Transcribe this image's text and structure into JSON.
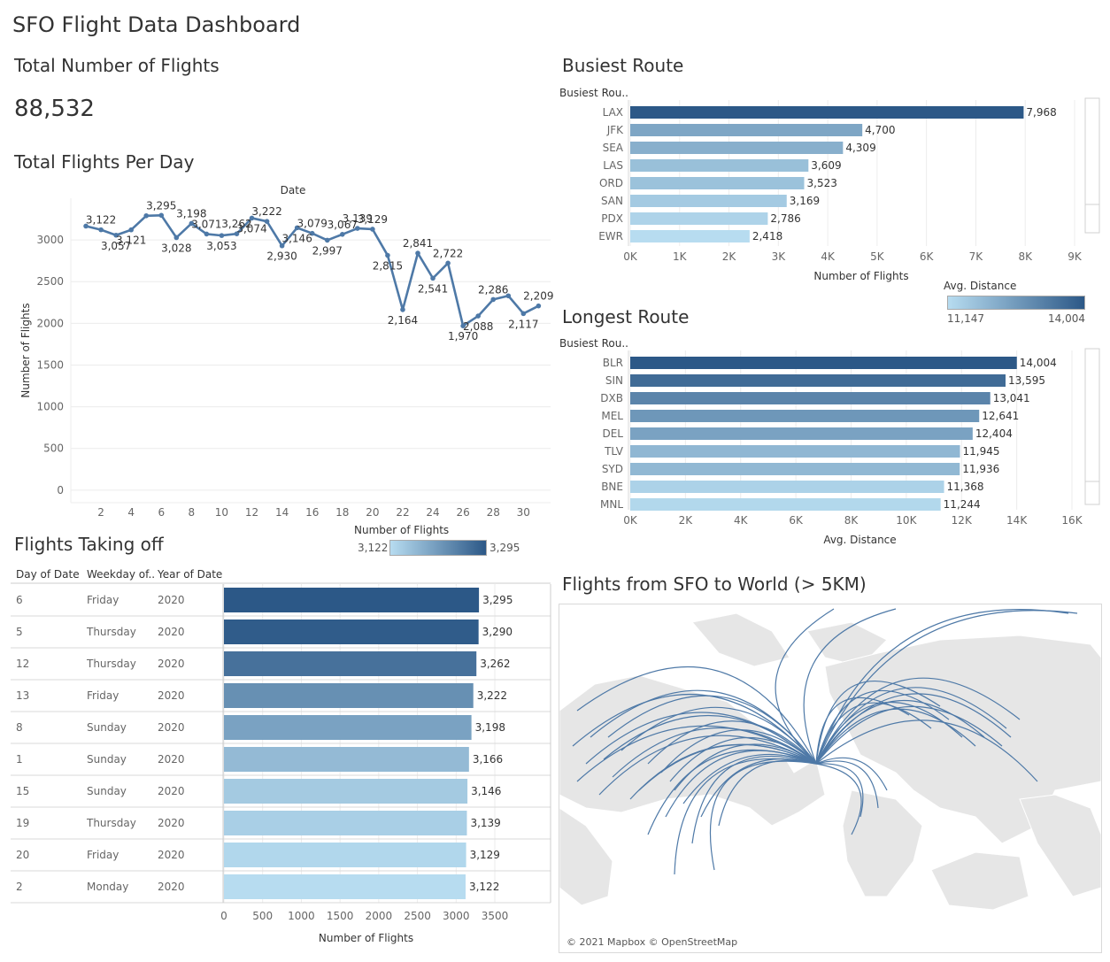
{
  "dashboard_title": "SFO Flight Data Dashboard",
  "kpi": {
    "title": "Total Number of Flights",
    "value": "88,532"
  },
  "colors": {
    "dark": "#2c5887",
    "light": "#b7dcf0",
    "line": "#4e79a7",
    "axis": "#666666"
  },
  "chart_data": [
    {
      "type": "line",
      "title": "Total Flights Per Day",
      "header": "Date",
      "xlabel": "Date",
      "ylabel": "Number of Flights",
      "x": [
        1,
        2,
        3,
        4,
        5,
        6,
        7,
        8,
        9,
        10,
        11,
        12,
        13,
        14,
        15,
        16,
        17,
        18,
        19,
        20,
        21,
        22,
        23,
        24,
        25,
        26,
        27,
        28,
        29,
        30,
        31
      ],
      "values": [
        3166,
        3122,
        3057,
        3121,
        3290,
        3295,
        3028,
        3198,
        3071,
        3053,
        3074,
        3262,
        3222,
        2930,
        3146,
        3079,
        2997,
        3067,
        3139,
        3129,
        2815,
        2164,
        2841,
        2541,
        2722,
        1970,
        2088,
        2286,
        2330,
        2117,
        2209
      ],
      "data_labels": [
        {
          "x": 2,
          "text": "3,122",
          "pos": "above"
        },
        {
          "x": 3,
          "text": "3,057",
          "pos": "below"
        },
        {
          "x": 4,
          "text": "3,121",
          "pos": "below"
        },
        {
          "x": 6,
          "text": "3,295",
          "pos": "above"
        },
        {
          "x": 7,
          "text": "3,028",
          "pos": "below"
        },
        {
          "x": 8,
          "text": "3,198",
          "pos": "above"
        },
        {
          "x": 9,
          "text": "3,071",
          "pos": "above"
        },
        {
          "x": 10,
          "text": "3,053",
          "pos": "below"
        },
        {
          "x": 11,
          "text": "3,262",
          "pos": "above"
        },
        {
          "x": 12,
          "text": "3,074",
          "pos": "below"
        },
        {
          "x": 13,
          "text": "3,222",
          "pos": "above"
        },
        {
          "x": 14,
          "text": "2,930",
          "pos": "below"
        },
        {
          "x": 15,
          "text": "3,146",
          "pos": "below"
        },
        {
          "x": 16,
          "text": "3,079",
          "pos": "above"
        },
        {
          "x": 17,
          "text": "2,997",
          "pos": "below"
        },
        {
          "x": 18,
          "text": "3,067",
          "pos": "above"
        },
        {
          "x": 19,
          "text": "3,139",
          "pos": "above"
        },
        {
          "x": 20,
          "text": "3,129",
          "pos": "above"
        },
        {
          "x": 21,
          "text": "2,815",
          "pos": "below"
        },
        {
          "x": 22,
          "text": "2,164",
          "pos": "below"
        },
        {
          "x": 23,
          "text": "2,841",
          "pos": "above"
        },
        {
          "x": 24,
          "text": "2,541",
          "pos": "below"
        },
        {
          "x": 25,
          "text": "2,722",
          "pos": "above"
        },
        {
          "x": 26,
          "text": "1,970",
          "pos": "below"
        },
        {
          "x": 27,
          "text": "2,088",
          "pos": "below"
        },
        {
          "x": 28,
          "text": "2,286",
          "pos": "above"
        },
        {
          "x": 30,
          "text": "2,117",
          "pos": "below"
        },
        {
          "x": 31,
          "text": "2,209",
          "pos": "above"
        }
      ],
      "xticks": [
        2,
        4,
        6,
        8,
        10,
        12,
        14,
        16,
        18,
        20,
        22,
        24,
        26,
        28,
        30
      ],
      "yticks": [
        0,
        500,
        1000,
        1500,
        2000,
        2500,
        3000
      ],
      "ylim": [
        -150,
        3500
      ]
    },
    {
      "type": "bar",
      "title": "Busiest Route",
      "header": "Busiest Rou..",
      "categories": [
        "LAX",
        "JFK",
        "SEA",
        "LAS",
        "ORD",
        "SAN",
        "PDX",
        "EWR"
      ],
      "values": [
        7968,
        4700,
        4309,
        3609,
        3523,
        3169,
        2786,
        2418
      ],
      "value_labels": [
        "7,968",
        "4,700",
        "4,309",
        "3,609",
        "3,523",
        "3,169",
        "2,786",
        "2,418"
      ],
      "xticks": [
        "0K",
        "1K",
        "2K",
        "3K",
        "4K",
        "5K",
        "6K",
        "7K",
        "8K",
        "9K"
      ],
      "xlim": [
        0,
        9000
      ],
      "xlabel": "Number of Flights",
      "legend": {
        "title": "Avg. Distance",
        "min": "11,147",
        "max": "14,004"
      }
    },
    {
      "type": "bar",
      "title": "Longest Route",
      "header": "Busiest Rou..",
      "categories": [
        "BLR",
        "SIN",
        "DXB",
        "MEL",
        "DEL",
        "TLV",
        "SYD",
        "BNE",
        "MNL"
      ],
      "values": [
        14004,
        13595,
        13041,
        12641,
        12404,
        11945,
        11936,
        11368,
        11244
      ],
      "value_labels": [
        "14,004",
        "13,595",
        "13,041",
        "12,641",
        "12,404",
        "11,945",
        "11,936",
        "11,368",
        "11,244"
      ],
      "xticks": [
        "0K",
        "2K",
        "4K",
        "6K",
        "8K",
        "10K",
        "12K",
        "14K",
        "16K"
      ],
      "xlim": [
        0,
        16000
      ],
      "xlabel": "Avg. Distance",
      "color_range": [
        11147,
        14004
      ]
    },
    {
      "type": "bar",
      "title": "Flights Taking off",
      "columns": [
        "Day of Date",
        "Weekday of..",
        "Year of Date"
      ],
      "rows": [
        {
          "day": "6",
          "weekday": "Friday",
          "year": "2020",
          "value": 3295,
          "label": "3,295"
        },
        {
          "day": "5",
          "weekday": "Thursday",
          "year": "2020",
          "value": 3290,
          "label": "3,290"
        },
        {
          "day": "12",
          "weekday": "Thursday",
          "year": "2020",
          "value": 3262,
          "label": "3,262"
        },
        {
          "day": "13",
          "weekday": "Friday",
          "year": "2020",
          "value": 3222,
          "label": "3,222"
        },
        {
          "day": "8",
          "weekday": "Sunday",
          "year": "2020",
          "value": 3198,
          "label": "3,198"
        },
        {
          "day": "1",
          "weekday": "Sunday",
          "year": "2020",
          "value": 3166,
          "label": "3,166"
        },
        {
          "day": "15",
          "weekday": "Sunday",
          "year": "2020",
          "value": 3146,
          "label": "3,146"
        },
        {
          "day": "19",
          "weekday": "Thursday",
          "year": "2020",
          "value": 3139,
          "label": "3,139"
        },
        {
          "day": "20",
          "weekday": "Friday",
          "year": "2020",
          "value": 3129,
          "label": "3,129"
        },
        {
          "day": "2",
          "weekday": "Monday",
          "year": "2020",
          "value": 3122,
          "label": "3,122"
        }
      ],
      "xticks": [
        0,
        500,
        1000,
        1500,
        2000,
        2500,
        3000,
        3500
      ],
      "xlim": [
        0,
        3900
      ],
      "xlabel": "Number of Flights",
      "legend": {
        "title": "Number of Flights",
        "min": "3,122",
        "max": "3,295"
      },
      "color_range": [
        3122,
        3295
      ]
    }
  ],
  "map": {
    "title": "Flights from SFO to World (> 5KM)",
    "copyright": "© 2021 Mapbox © OpenStreetMap"
  }
}
